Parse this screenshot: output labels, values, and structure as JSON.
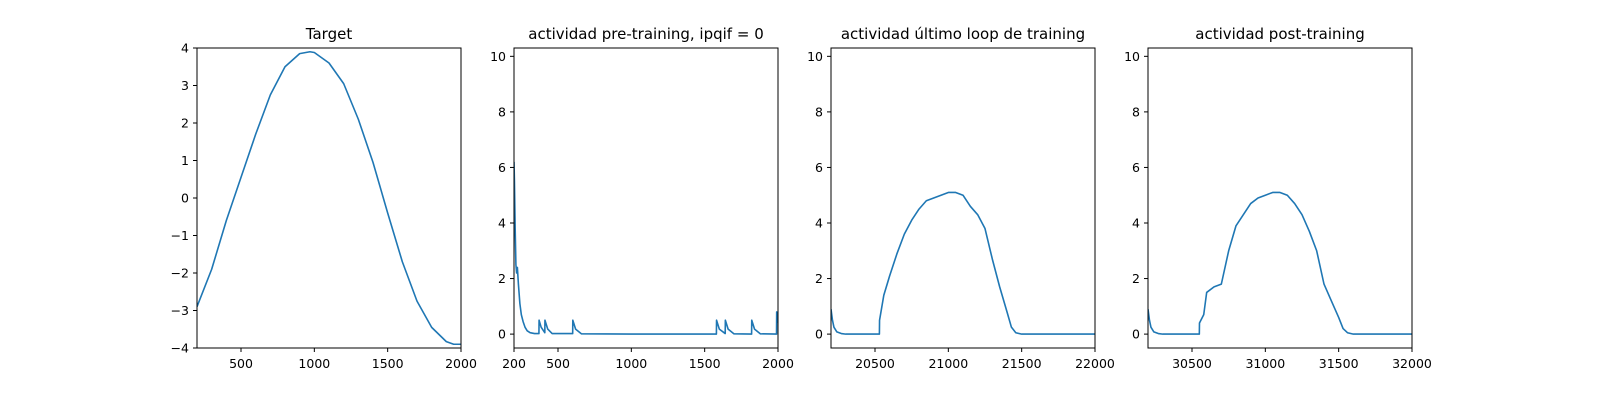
{
  "chart_data": [
    {
      "type": "line",
      "title": "Target",
      "xlabel": "",
      "ylabel": "",
      "xlim": [
        200,
        2000
      ],
      "ylim": [
        -4,
        4
      ],
      "xticks": [
        500,
        1000,
        1500,
        2000
      ],
      "yticks": [
        -4,
        -3,
        -2,
        -1,
        0,
        1,
        2,
        3,
        4
      ],
      "grid": false,
      "color": "#1f77b4",
      "series": [
        {
          "x": [
            200,
            300,
            400,
            500,
            600,
            700,
            800,
            900,
            970,
            1000,
            1100,
            1200,
            1300,
            1400,
            1500,
            1600,
            1700,
            1800,
            1900,
            1950,
            2000
          ],
          "y": [
            -2.9,
            -1.9,
            -0.6,
            0.55,
            1.7,
            2.75,
            3.5,
            3.85,
            3.9,
            3.88,
            3.6,
            3.05,
            2.1,
            0.95,
            -0.4,
            -1.7,
            -2.75,
            -3.45,
            -3.83,
            -3.9,
            -3.9
          ]
        }
      ]
    },
    {
      "type": "line",
      "title": "actividad pre-training, ipqif = 0",
      "xlabel": "",
      "ylabel": "",
      "xlim": [
        200,
        2000
      ],
      "ylim": [
        -0.5,
        10.3
      ],
      "xticks": [
        200,
        500,
        1000,
        1500,
        2000
      ],
      "yticks": [
        0,
        2,
        4,
        6,
        8,
        10
      ],
      "grid": false,
      "color": "#1f77b4",
      "series": [
        {
          "x": [
            200,
            203,
            208,
            213,
            218,
            223,
            230,
            240,
            250,
            262,
            275,
            290,
            310,
            340,
            370,
            371,
            385,
            410,
            411,
            430,
            460,
            600,
            601,
            620,
            660,
            1000,
            1580,
            1581,
            1600,
            1640,
            1641,
            1660,
            1700,
            1820,
            1821,
            1840,
            1880,
            1990,
            1991,
            2000
          ],
          "y": [
            6.2,
            5.5,
            3.8,
            2.5,
            2.2,
            2.4,
            1.8,
            1.1,
            0.7,
            0.45,
            0.25,
            0.12,
            0.05,
            0.02,
            0.02,
            0.5,
            0.25,
            0.05,
            0.5,
            0.18,
            0.02,
            0.02,
            0.5,
            0.18,
            0.01,
            0.0,
            0.0,
            0.5,
            0.18,
            0.02,
            0.5,
            0.18,
            0.01,
            0.0,
            0.5,
            0.18,
            0.01,
            0.0,
            0.8,
            0.4
          ]
        }
      ]
    },
    {
      "type": "line",
      "title": "actividad último loop de training",
      "xlabel": "",
      "ylabel": "",
      "xlim": [
        20200,
        22000
      ],
      "ylim": [
        -0.5,
        10.3
      ],
      "xticks": [
        20500,
        21000,
        21500,
        22000
      ],
      "yticks": [
        0,
        2,
        4,
        6,
        8,
        10
      ],
      "grid": false,
      "color": "#1f77b4",
      "series": [
        {
          "x": [
            20200,
            20210,
            20220,
            20240,
            20270,
            20300,
            20400,
            20500,
            20530,
            20531,
            20560,
            20600,
            20650,
            20700,
            20750,
            20800,
            20850,
            20900,
            20950,
            21000,
            21050,
            21100,
            21150,
            21200,
            21250,
            21300,
            21350,
            21400,
            21430,
            21460,
            21500,
            21600,
            21700,
            21800,
            21900,
            22000
          ],
          "y": [
            0.9,
            0.5,
            0.25,
            0.08,
            0.02,
            0.0,
            0.0,
            0.0,
            0.0,
            0.5,
            1.4,
            2.1,
            2.9,
            3.6,
            4.1,
            4.5,
            4.8,
            4.9,
            5.0,
            5.1,
            5.1,
            5.0,
            4.6,
            4.3,
            3.8,
            2.7,
            1.7,
            0.8,
            0.25,
            0.05,
            0.0,
            0.0,
            0.0,
            0.0,
            0.0,
            0.0
          ]
        }
      ]
    },
    {
      "type": "line",
      "title": "actividad post-training",
      "xlabel": "",
      "ylabel": "",
      "xlim": [
        30200,
        32000
      ],
      "ylim": [
        -0.5,
        10.3
      ],
      "xticks": [
        30500,
        31000,
        31500,
        32000
      ],
      "yticks": [
        0,
        2,
        4,
        6,
        8,
        10
      ],
      "grid": false,
      "color": "#1f77b4",
      "series": [
        {
          "x": [
            30200,
            30210,
            30220,
            30240,
            30270,
            30300,
            30400,
            30500,
            30550,
            30551,
            30580,
            30600,
            30650,
            30700,
            30750,
            30800,
            30850,
            30900,
            30950,
            31000,
            31050,
            31100,
            31150,
            31200,
            31250,
            31300,
            31350,
            31400,
            31450,
            31500,
            31530,
            31560,
            31600,
            31700,
            31800,
            31900,
            32000
          ],
          "y": [
            0.9,
            0.5,
            0.25,
            0.08,
            0.02,
            0.0,
            0.0,
            0.0,
            0.0,
            0.4,
            0.7,
            1.5,
            1.7,
            1.8,
            3.0,
            3.9,
            4.3,
            4.7,
            4.9,
            5.0,
            5.1,
            5.1,
            5.0,
            4.7,
            4.3,
            3.7,
            3.0,
            1.8,
            1.2,
            0.6,
            0.2,
            0.05,
            0.0,
            0.0,
            0.0,
            0.0,
            0.0
          ]
        }
      ]
    }
  ]
}
